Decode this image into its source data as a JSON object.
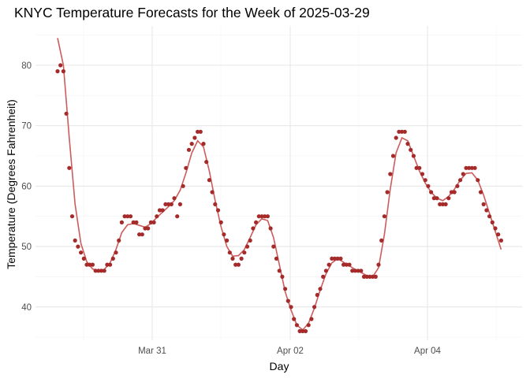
{
  "chart_data": {
    "type": "scatter",
    "title": "KNYC Temperature Forecasts for the Week of 2025-03-29",
    "xlabel": "Day",
    "ylabel": "Temperature (Degrees Fahrenheit)",
    "x_ticks": [
      "Mar 31",
      "Apr 02",
      "Apr 04"
    ],
    "y_ticks": [
      40,
      50,
      60,
      70,
      80
    ],
    "ylim": [
      34.5,
      86.5
    ],
    "grid": true,
    "legend": "none",
    "point_color": "#a52a2a",
    "line_color": "#cd5c5c",
    "series": [
      {
        "points": [
          [
            0,
            79
          ],
          [
            1,
            80
          ],
          [
            2,
            79
          ],
          [
            3,
            72
          ],
          [
            4,
            63
          ],
          [
            5,
            55
          ],
          [
            6,
            51
          ],
          [
            7,
            50
          ],
          [
            8,
            49
          ],
          [
            9,
            48
          ],
          [
            10,
            47
          ],
          [
            11,
            47
          ],
          [
            12,
            47
          ],
          [
            13,
            46
          ],
          [
            14,
            46
          ],
          [
            15,
            46
          ],
          [
            16,
            46
          ],
          [
            17,
            47
          ],
          [
            18,
            47
          ],
          [
            19,
            48
          ],
          [
            20,
            49
          ],
          [
            21,
            51
          ],
          [
            22,
            54
          ],
          [
            23,
            55
          ],
          [
            24,
            55
          ],
          [
            25,
            55
          ],
          [
            26,
            54
          ],
          [
            27,
            54
          ],
          [
            28,
            52
          ],
          [
            29,
            52
          ],
          [
            30,
            53
          ],
          [
            31,
            53
          ],
          [
            32,
            54
          ],
          [
            33,
            54
          ],
          [
            34,
            55
          ],
          [
            35,
            56
          ],
          [
            36,
            56
          ],
          [
            37,
            57
          ],
          [
            38,
            57
          ],
          [
            39,
            57
          ],
          [
            40,
            58
          ],
          [
            41,
            55
          ],
          [
            42,
            57
          ],
          [
            43,
            60
          ],
          [
            44,
            63
          ],
          [
            45,
            66
          ],
          [
            46,
            67
          ],
          [
            47,
            68
          ],
          [
            48,
            69
          ],
          [
            49,
            69
          ],
          [
            50,
            67
          ],
          [
            51,
            64
          ],
          [
            52,
            61
          ],
          [
            53,
            59
          ],
          [
            54,
            57
          ],
          [
            55,
            56
          ],
          [
            56,
            54
          ],
          [
            57,
            52
          ],
          [
            58,
            51
          ],
          [
            59,
            49
          ],
          [
            60,
            48
          ],
          [
            61,
            47
          ],
          [
            62,
            47
          ],
          [
            63,
            48
          ],
          [
            64,
            49
          ],
          [
            65,
            50
          ],
          [
            66,
            51
          ],
          [
            67,
            53
          ],
          [
            68,
            54
          ],
          [
            69,
            55
          ],
          [
            70,
            55
          ],
          [
            71,
            55
          ],
          [
            72,
            55
          ],
          [
            73,
            53
          ],
          [
            74,
            50
          ],
          [
            75,
            48
          ],
          [
            76,
            46
          ],
          [
            77,
            45
          ],
          [
            78,
            43
          ],
          [
            79,
            41
          ],
          [
            80,
            40
          ],
          [
            81,
            38
          ],
          [
            82,
            37
          ],
          [
            83,
            36
          ],
          [
            84,
            36
          ],
          [
            85,
            36
          ],
          [
            86,
            37
          ],
          [
            87,
            38
          ],
          [
            88,
            40
          ],
          [
            89,
            42
          ],
          [
            90,
            43
          ],
          [
            91,
            45
          ],
          [
            92,
            46
          ],
          [
            93,
            47
          ],
          [
            94,
            48
          ],
          [
            95,
            48
          ],
          [
            96,
            48
          ],
          [
            97,
            48
          ],
          [
            98,
            47
          ],
          [
            99,
            47
          ],
          [
            100,
            47
          ],
          [
            101,
            46
          ],
          [
            102,
            46
          ],
          [
            103,
            46
          ],
          [
            104,
            46
          ],
          [
            105,
            45
          ],
          [
            106,
            45
          ],
          [
            107,
            45
          ],
          [
            108,
            45
          ],
          [
            109,
            45
          ],
          [
            110,
            47
          ],
          [
            111,
            51
          ],
          [
            112,
            55
          ],
          [
            113,
            59
          ],
          [
            114,
            62
          ],
          [
            115,
            65
          ],
          [
            116,
            68
          ],
          [
            117,
            69
          ],
          [
            118,
            69
          ],
          [
            119,
            69
          ],
          [
            120,
            67
          ],
          [
            121,
            66
          ],
          [
            122,
            65
          ],
          [
            123,
            63
          ],
          [
            124,
            63
          ],
          [
            125,
            62
          ],
          [
            126,
            61
          ],
          [
            127,
            60
          ],
          [
            128,
            59
          ],
          [
            129,
            58
          ],
          [
            130,
            58
          ],
          [
            131,
            57
          ],
          [
            132,
            57
          ],
          [
            133,
            57
          ],
          [
            134,
            58
          ],
          [
            135,
            59
          ],
          [
            136,
            59
          ],
          [
            137,
            60
          ],
          [
            138,
            61
          ],
          [
            139,
            62
          ],
          [
            140,
            63
          ],
          [
            141,
            63
          ],
          [
            142,
            63
          ],
          [
            143,
            63
          ],
          [
            144,
            61
          ],
          [
            145,
            59
          ],
          [
            146,
            57
          ],
          [
            147,
            56
          ],
          [
            148,
            55
          ],
          [
            149,
            54
          ],
          [
            150,
            53
          ],
          [
            151,
            52
          ],
          [
            152,
            51
          ]
        ],
        "trend": [
          [
            0,
            84.5
          ],
          [
            2,
            80
          ],
          [
            4,
            68
          ],
          [
            6,
            57
          ],
          [
            8,
            50.5
          ],
          [
            10,
            47.5
          ],
          [
            12,
            46.3
          ],
          [
            14,
            46
          ],
          [
            16,
            46.2
          ],
          [
            18,
            47.3
          ],
          [
            20,
            49.5
          ],
          [
            22,
            52.3
          ],
          [
            24,
            53.6
          ],
          [
            26,
            53.8
          ],
          [
            28,
            53.5
          ],
          [
            30,
            53.2
          ],
          [
            32,
            53.8
          ],
          [
            34,
            54.8
          ],
          [
            36,
            55.7
          ],
          [
            38,
            56.6
          ],
          [
            40,
            57.6
          ],
          [
            42,
            59.3
          ],
          [
            44,
            62.2
          ],
          [
            46,
            65.5
          ],
          [
            48,
            67.5
          ],
          [
            50,
            66.5
          ],
          [
            52,
            62.5
          ],
          [
            54,
            57.6
          ],
          [
            56,
            53.3
          ],
          [
            58,
            50
          ],
          [
            60,
            48.4
          ],
          [
            62,
            48.5
          ],
          [
            64,
            49.5
          ],
          [
            66,
            51.5
          ],
          [
            68,
            53.6
          ],
          [
            70,
            54.6
          ],
          [
            72,
            54.3
          ],
          [
            74,
            51.5
          ],
          [
            76,
            47
          ],
          [
            78,
            42.5
          ],
          [
            80,
            39.5
          ],
          [
            82,
            37
          ],
          [
            84,
            36.2
          ],
          [
            86,
            37.3
          ],
          [
            88,
            39.8
          ],
          [
            90,
            42.8
          ],
          [
            92,
            45.5
          ],
          [
            94,
            47.3
          ],
          [
            96,
            48
          ],
          [
            98,
            47.4
          ],
          [
            100,
            46.8
          ],
          [
            102,
            46.2
          ],
          [
            104,
            45.7
          ],
          [
            106,
            45.2
          ],
          [
            108,
            45
          ],
          [
            110,
            46.5
          ],
          [
            112,
            52
          ],
          [
            114,
            59.5
          ],
          [
            116,
            65.5
          ],
          [
            118,
            68
          ],
          [
            120,
            67.5
          ],
          [
            122,
            65
          ],
          [
            124,
            62.5
          ],
          [
            126,
            60.5
          ],
          [
            128,
            59
          ],
          [
            130,
            58
          ],
          [
            132,
            57.6
          ],
          [
            134,
            58.3
          ],
          [
            136,
            59.5
          ],
          [
            138,
            61
          ],
          [
            140,
            62.1
          ],
          [
            142,
            62.2
          ],
          [
            144,
            61
          ],
          [
            146,
            58.5
          ],
          [
            148,
            55.5
          ],
          [
            150,
            52.5
          ],
          [
            152,
            49.5
          ]
        ]
      }
    ]
  }
}
